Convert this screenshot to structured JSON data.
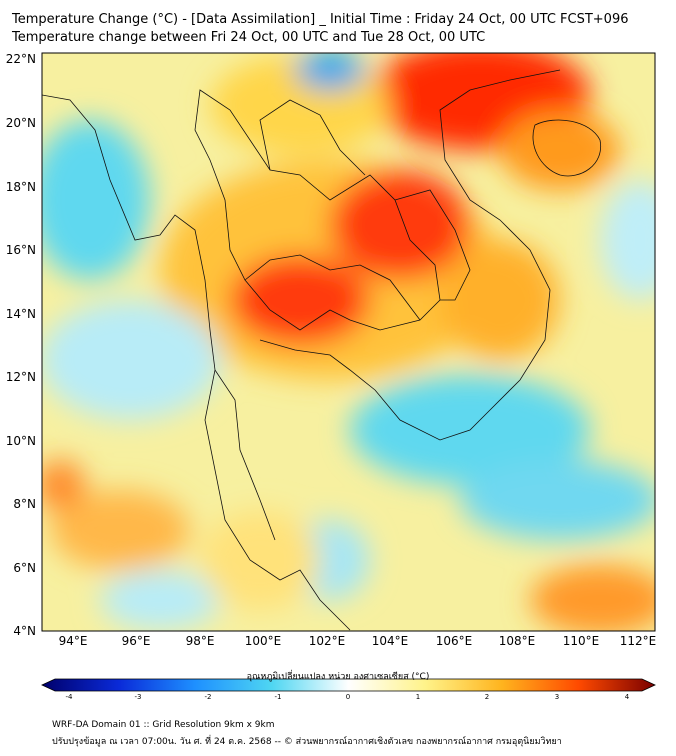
{
  "title_line1": "Temperature Change (°C) - [Data Assimilation] _ Initial Time : Friday 24 Oct, 00 UTC FCST+096",
  "title_line2": "Temperature change between Fri 24 Oct, 00 UTC and Tue 28 Oct, 00 UTC",
  "latitude_ticks": [
    "22°N",
    "20°N",
    "18°N",
    "16°N",
    "14°N",
    "12°N",
    "10°N",
    "8°N",
    "6°N",
    "4°N"
  ],
  "longitude_ticks": [
    "94°E",
    "96°E",
    "98°E",
    "100°E",
    "102°E",
    "104°E",
    "106°E",
    "108°E",
    "110°E",
    "112°E"
  ],
  "colorbar": {
    "title": "อุณหภูมิเปลี่ยนแปลง หน่วย องศาเซลเซียส (°C)",
    "ticks": [
      "-4",
      "-3",
      "-2",
      "-1",
      "0",
      "1",
      "2",
      "3",
      "4"
    ],
    "colors": [
      "#00006b",
      "#0a2ad8",
      "#1e90ff",
      "#4fd6f2",
      "#ffffff",
      "#fff38a",
      "#ffb41e",
      "#ff4a00",
      "#7a0000"
    ]
  },
  "footer_line1": "WRF-DA Domain 01 :: Grid Resolution 9km x 9km",
  "footer_line2": "ปรับปรุงข้อมูล ณ เวลา 07:00น. วัน ศ. ที่ 24 ต.ค. 2568 -- © ส่วนพยากรณ์อากาศเชิงตัวเลข กองพยากรณ์อากาศ กรมอุตุนิยมวิทยา"
}
